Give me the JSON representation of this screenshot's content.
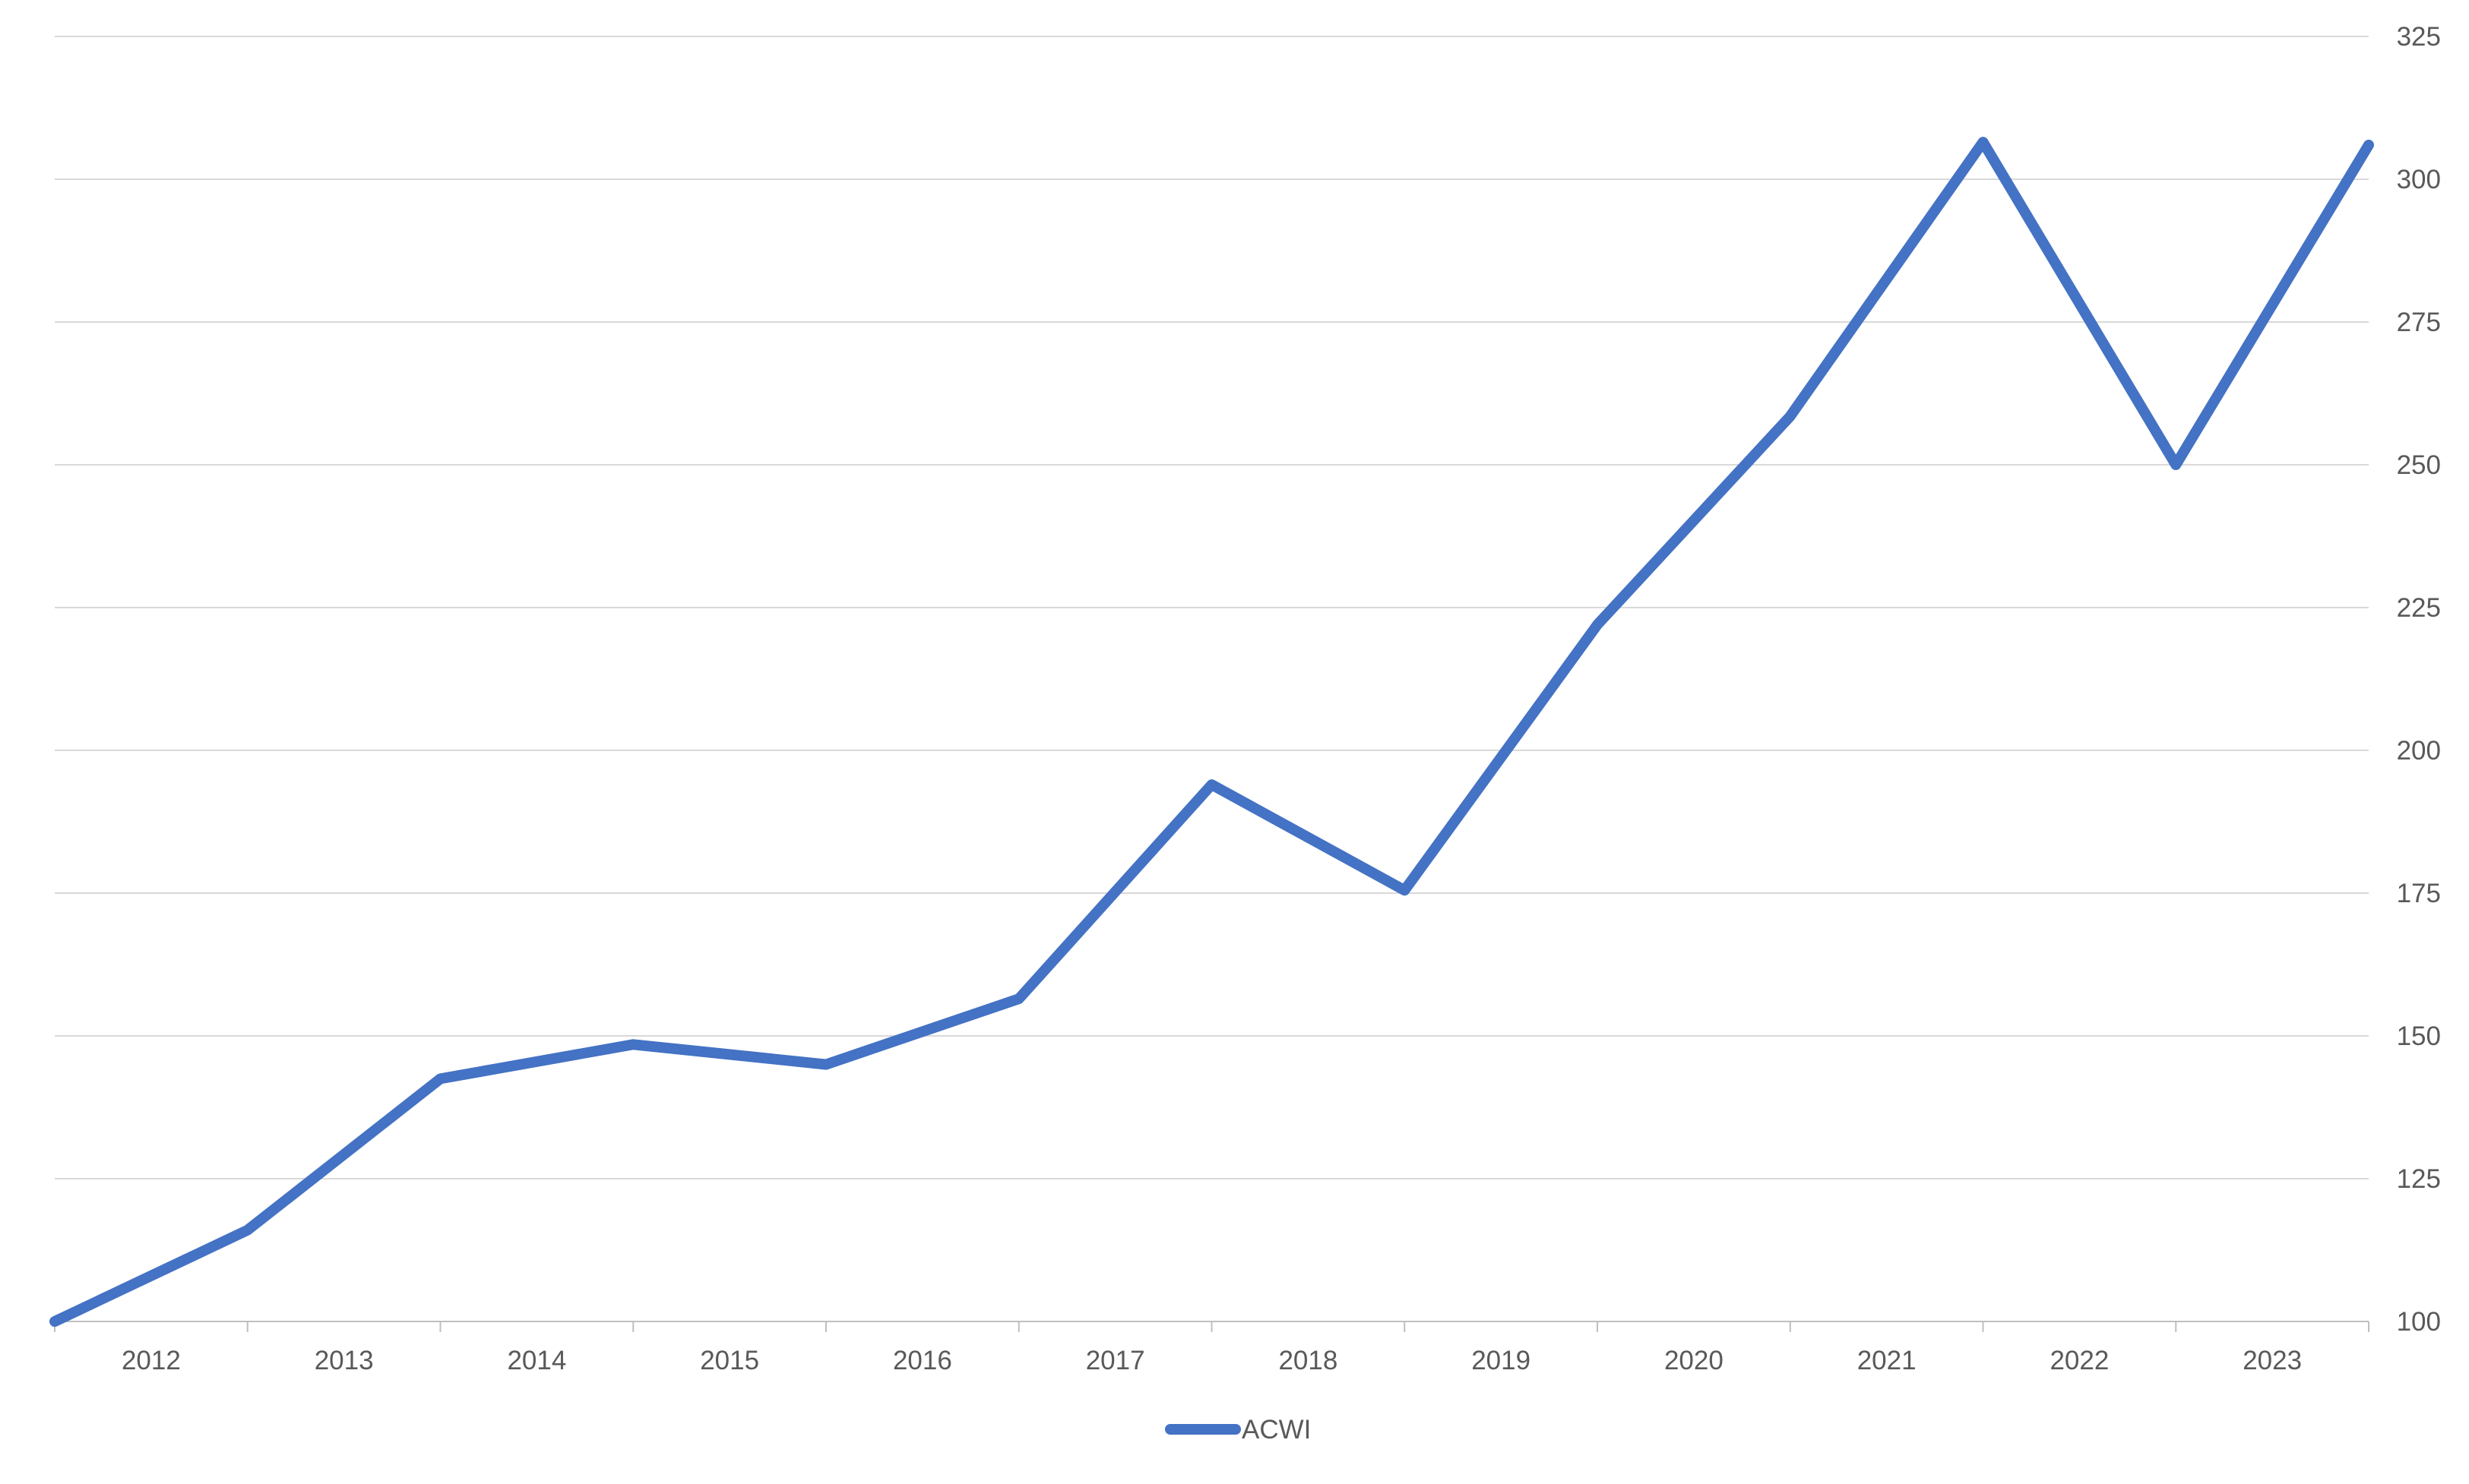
{
  "chart_data": {
    "type": "line",
    "title": "",
    "xlabel": "",
    "ylabel": "",
    "categories": [
      "2012",
      "2013",
      "2014",
      "2015",
      "2016",
      "2017",
      "2018",
      "2019",
      "2020",
      "2021",
      "2022",
      "2023"
    ],
    "x": [
      2011.5,
      2012.5,
      2013.5,
      2014.5,
      2015.5,
      2016.5,
      2017.5,
      2018.5,
      2019.5,
      2020.5,
      2021.5,
      2022.5,
      2023.5
    ],
    "series": [
      {
        "name": "ACWI",
        "values": [
          100,
          116,
          142.5,
          148.5,
          145,
          156.5,
          194,
          175.5,
          222,
          258.5,
          306.5,
          250,
          306
        ],
        "color": "#4472C4"
      }
    ],
    "ylim": [
      100,
      325
    ],
    "yticks": [
      100,
      125,
      150,
      175,
      200,
      225,
      250,
      275,
      300,
      325
    ],
    "y_axis_position": "right",
    "grid": true,
    "legend_position": "bottom-center"
  }
}
